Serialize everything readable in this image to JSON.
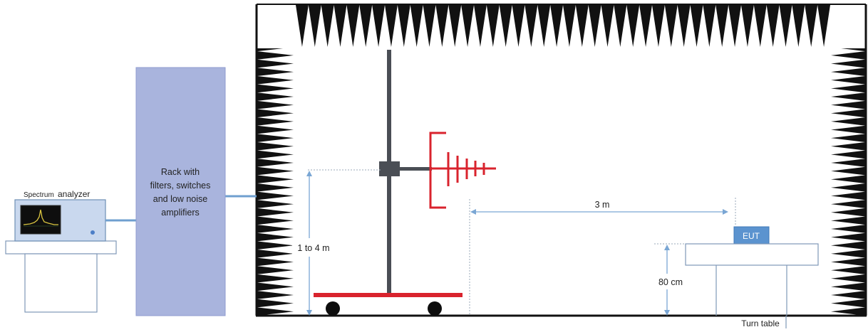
{
  "spectrum_analyzer": {
    "label_small": "Spectrum",
    "label_large": "analyzer"
  },
  "rack": {
    "label_lines": [
      "Rack with",
      "filters, switches",
      "and low noise",
      "amplifiers"
    ]
  },
  "chamber": {
    "height_range_label": "1 to 4 m",
    "distance_label": "3 m",
    "table_height_label": "80 cm",
    "eut_label": "EUT",
    "turntable_label": "Turn table"
  },
  "colors": {
    "absorber": "#111111",
    "rack_fill": "#a9b4dd",
    "instrument_fill": "#c9d8ee",
    "cable": "#6f9fcf",
    "antenna": "#d9232d",
    "mast": "#4a4e55",
    "cart": "#d9232d",
    "eut_fill": "#5b93cf",
    "dimension_line": "#7aa6d4"
  }
}
